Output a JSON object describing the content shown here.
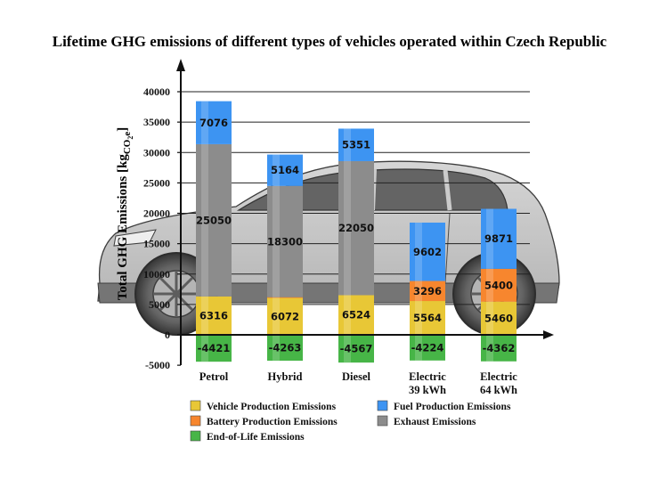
{
  "chart_data": {
    "type": "bar",
    "stacked": true,
    "title": "Lifetime GHG emissions of different types of vehicles operated within Czech Republic",
    "ylabel": {
      "main": "Total GHG Emissions [kg",
      "sub1": "CO",
      "sub2": "2",
      "sub3": "e",
      "close": "]"
    },
    "ylim": [
      -5000,
      40000
    ],
    "yticks": [
      -5000,
      0,
      5000,
      10000,
      15000,
      20000,
      25000,
      30000,
      35000,
      40000
    ],
    "grid": true,
    "legend_position": "bottom",
    "categories": [
      {
        "lines": [
          "Petrol"
        ]
      },
      {
        "lines": [
          "Hybrid"
        ]
      },
      {
        "lines": [
          "Diesel"
        ]
      },
      {
        "lines": [
          "Electric",
          "39 kWh"
        ]
      },
      {
        "lines": [
          "Electric",
          "64 kWh"
        ]
      }
    ],
    "series": [
      {
        "name": "End-of-Life Emissions",
        "color": "#47b547",
        "values": [
          -4421,
          -4263,
          -4567,
          -4224,
          -4362
        ]
      },
      {
        "name": "Vehicle Production Emissions",
        "color": "#e8c736",
        "values": [
          6316,
          6072,
          6524,
          5564,
          5460
        ]
      },
      {
        "name": "Battery Production Emissions",
        "color": "#f7862e",
        "values": [
          null,
          125,
          null,
          3296,
          5400
        ]
      },
      {
        "name": "Exhaust Emissions",
        "color": "#8c8c8c",
        "values": [
          25050,
          18300,
          22050,
          null,
          null
        ]
      },
      {
        "name": "Fuel Production Emissions",
        "color": "#3d94f2",
        "values": [
          7076,
          5164,
          5351,
          9602,
          9871
        ]
      }
    ],
    "legend_order": [
      "Vehicle Production Emissions",
      "Fuel Production Emissions",
      "Battery Production Emissions",
      "Exhaust Emissions",
      "End-of-Life Emissions"
    ],
    "background_image": "car-silhouette"
  }
}
